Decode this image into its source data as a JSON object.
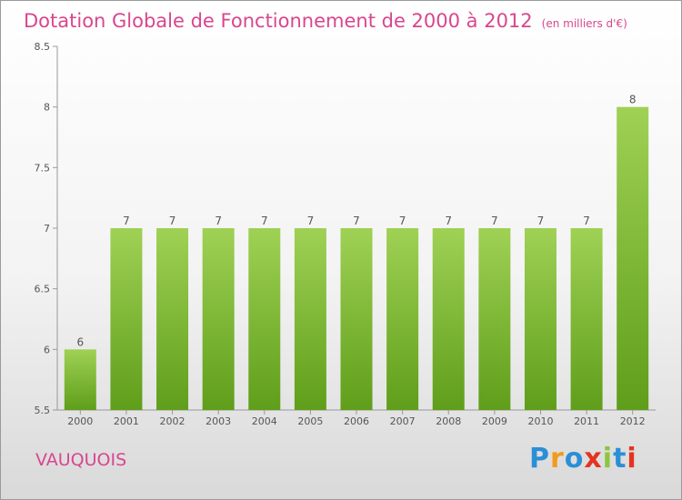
{
  "chart_data": {
    "type": "bar",
    "title": "Dotation Globale de Fonctionnement de 2000 à 2012",
    "subtitle": "(en milliers d'€)",
    "categories": [
      "2000",
      "2001",
      "2002",
      "2003",
      "2004",
      "2005",
      "2006",
      "2007",
      "2008",
      "2009",
      "2010",
      "2011",
      "2012"
    ],
    "values": [
      6,
      7,
      7,
      7,
      7,
      7,
      7,
      7,
      7,
      7,
      7,
      7,
      8
    ],
    "value_labels": [
      "6",
      "7",
      "7",
      "7",
      "7",
      "7",
      "7",
      "7",
      "7",
      "7",
      "7",
      "7",
      "8"
    ],
    "ylim": [
      5.5,
      8.5
    ],
    "yticks": [
      5.5,
      6,
      6.5,
      7,
      7.5,
      8,
      8.5
    ],
    "ytick_labels": [
      "5.5",
      "6",
      "6.5",
      "7",
      "7.5",
      "8",
      "8.5"
    ],
    "grid": false,
    "bar_color": "#8cc63f",
    "bar_color_dark": "#5f9e1a"
  },
  "town": "VAUQUOIS",
  "logo": {
    "text": "Proxiti",
    "colors": {
      "primary": "#2a8fd6",
      "accent": "#f29b1b",
      "red": "#e2341f",
      "green": "#8cc63f"
    }
  },
  "title_color": "#d9468f"
}
